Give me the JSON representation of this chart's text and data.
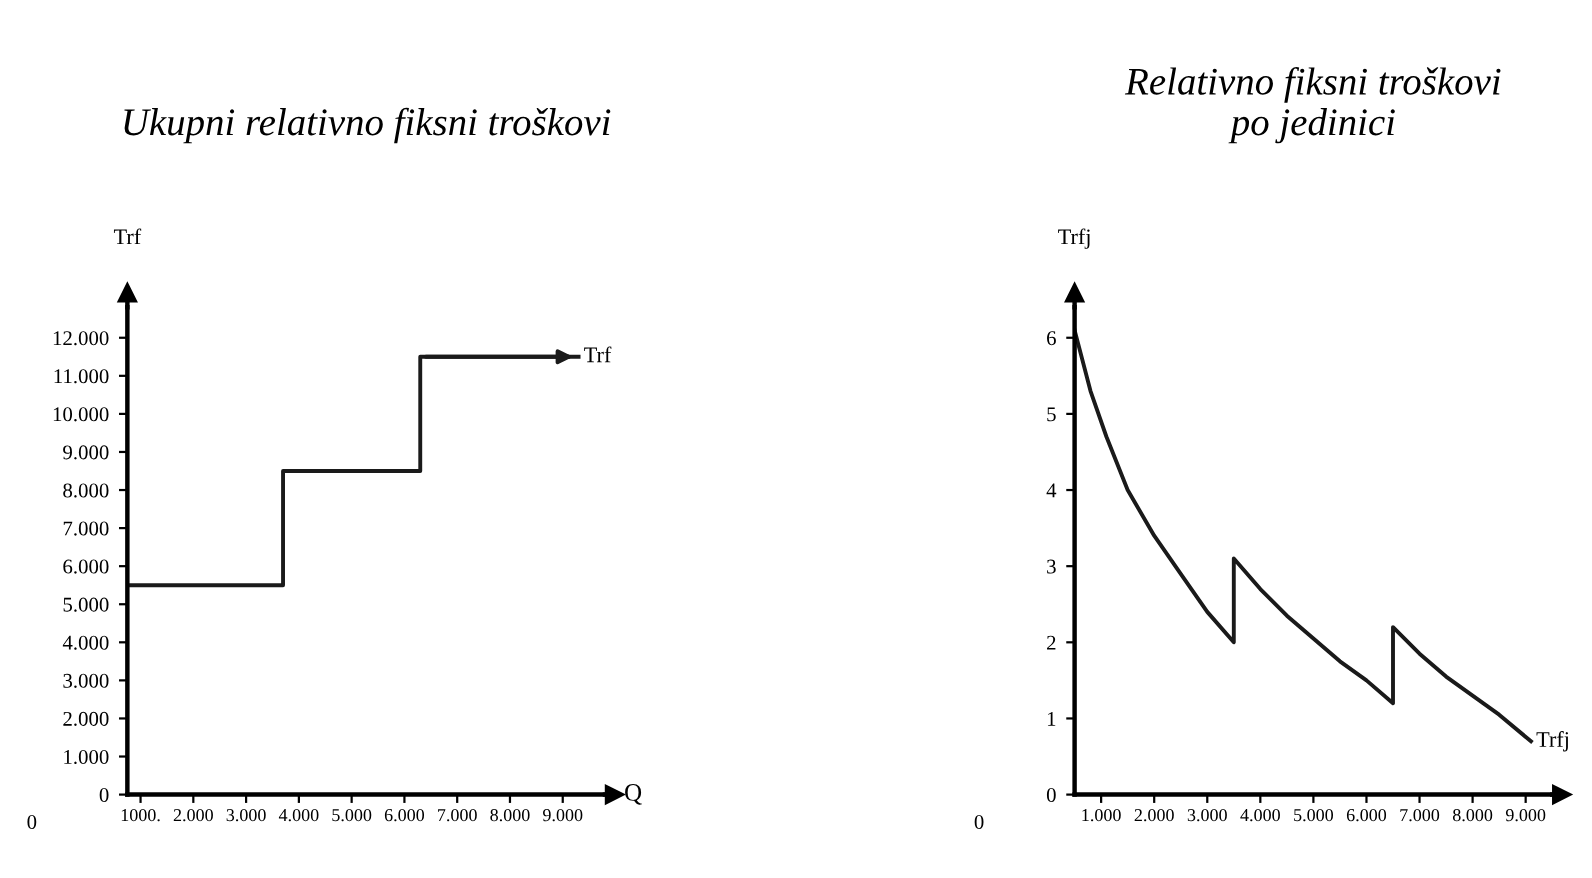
{
  "chart_data": [
    {
      "type": "step",
      "title": "Ukupni relativno fiksni troškovi",
      "xlabel": "Q",
      "ylabel": "Trf",
      "annotations": [
        "0"
      ],
      "xlim": [
        750,
        9800
      ],
      "ylim": [
        0,
        12800
      ],
      "xticks": [
        {
          "value": 1000,
          "label": "1000."
        },
        {
          "value": 2000,
          "label": "2.000"
        },
        {
          "value": 3000,
          "label": "3.000"
        },
        {
          "value": 4000,
          "label": "4.000"
        },
        {
          "value": 5000,
          "label": "5.000"
        },
        {
          "value": 6000,
          "label": "6.000"
        },
        {
          "value": 7000,
          "label": "7.000"
        },
        {
          "value": 8000,
          "label": "8.000"
        },
        {
          "value": 9000,
          "label": "9.000"
        }
      ],
      "yticks": [
        0,
        {
          "value": 1000,
          "label": "1.000"
        },
        {
          "value": 2000,
          "label": "2.000"
        },
        {
          "value": 3000,
          "label": "3.000"
        },
        {
          "value": 4000,
          "label": "4.000"
        },
        {
          "value": 5000,
          "label": "5.000"
        },
        {
          "value": 6000,
          "label": "6.000"
        },
        {
          "value": 7000,
          "label": "7.000"
        },
        {
          "value": 8000,
          "label": "8.000"
        },
        {
          "value": 9000,
          "label": "9.000"
        },
        {
          "value": 10000,
          "label": "10.000"
        },
        {
          "value": 11000,
          "label": "11.000"
        },
        {
          "value": 12000,
          "label": "12.000"
        }
      ],
      "series": [
        {
          "name": "Trf",
          "color": "#1a1a1a",
          "x": [
            750,
            3700,
            6300,
            9300
          ],
          "values": [
            5500,
            8500,
            11500,
            11500
          ]
        }
      ]
    },
    {
      "type": "line",
      "title": "Relativno fiksni troškovi\npo jedinici",
      "ylabel": "Trfj",
      "annotations": [
        "0"
      ],
      "xlim": [
        500,
        9500
      ],
      "ylim": [
        0,
        6.4
      ],
      "xticks": [
        {
          "value": 1000,
          "label": "1.000"
        },
        {
          "value": 2000,
          "label": "2.000"
        },
        {
          "value": 3000,
          "label": "3.000"
        },
        {
          "value": 4000,
          "label": "4.000"
        },
        {
          "value": 5000,
          "label": "5.000"
        },
        {
          "value": 6000,
          "label": "6.000"
        },
        {
          "value": 7000,
          "label": "7.000"
        },
        {
          "value": 8000,
          "label": "8.000"
        },
        {
          "value": 9000,
          "label": "9.000"
        }
      ],
      "yticks": [
        0,
        1,
        2,
        3,
        4,
        5,
        6
      ],
      "series": [
        {
          "name": "Trfj",
          "color": "#1a1a1a",
          "x": [
            500,
            800,
            1100,
            1500,
            2000,
            2500,
            3000,
            3500,
            3500,
            4000,
            4500,
            5000,
            5500,
            6000,
            6500,
            6500,
            7000,
            7500,
            8000,
            8500,
            9100
          ],
          "values": [
            6.1,
            5.3,
            4.7,
            4.0,
            3.4,
            2.9,
            2.4,
            2.0,
            3.1,
            2.7,
            2.35,
            2.05,
            1.75,
            1.5,
            1.2,
            2.2,
            1.85,
            1.55,
            1.3,
            1.05,
            0.7
          ]
        }
      ]
    }
  ]
}
